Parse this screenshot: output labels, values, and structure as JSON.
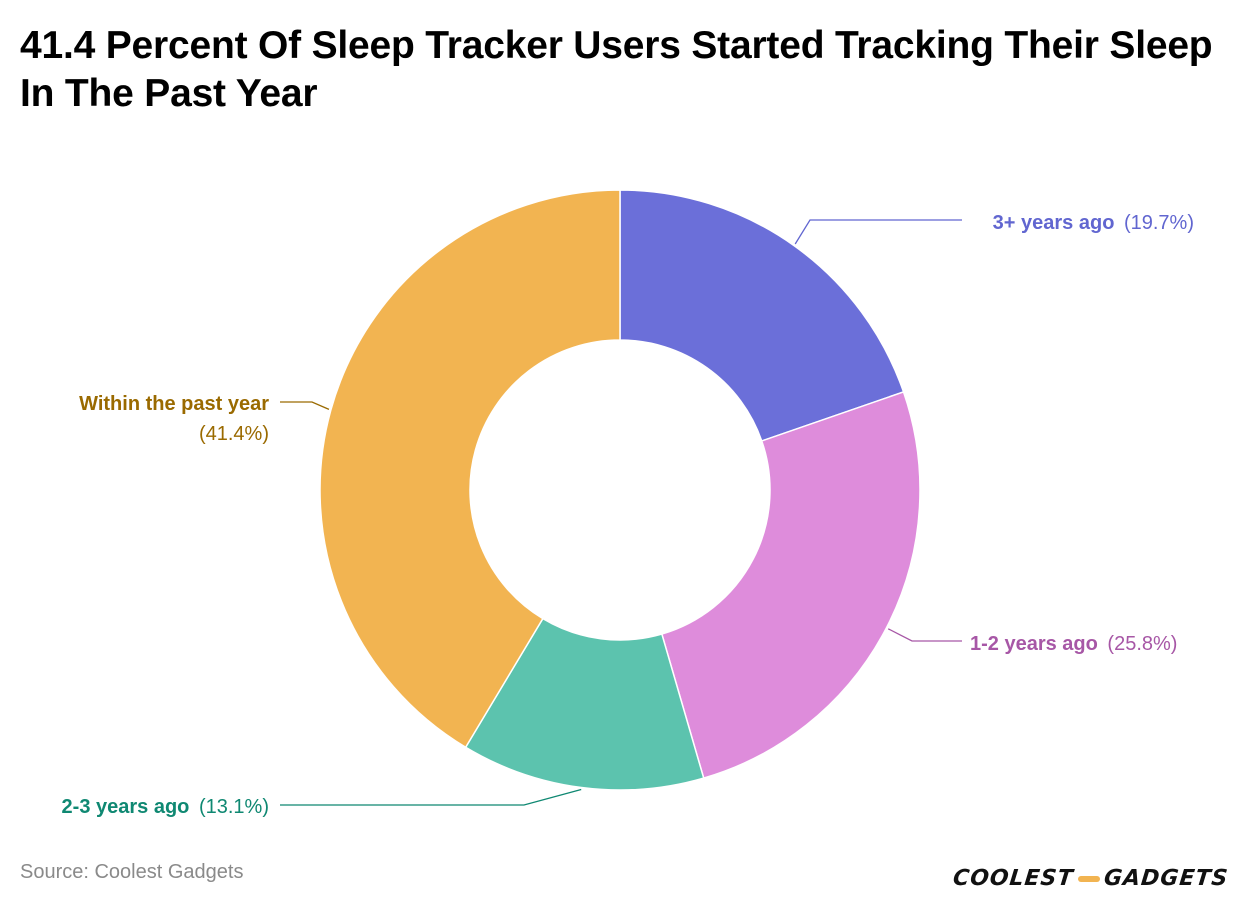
{
  "header": {
    "title": "41.4 Percent Of Sleep Tracker Users Started Tracking Their Sleep In The Past Year"
  },
  "footer": {
    "source": "Source: Coolest Gadgets",
    "logo_word_1": "Coolest",
    "logo_word_2": "Gadgets"
  },
  "colors": {
    "three_plus": "#6b6fd9",
    "one_two": "#de8cdb",
    "two_three": "#5cc3ae",
    "within": "#f2b451",
    "label_three_plus": "#6166d0",
    "label_one_two": "#a757a6",
    "label_two_three": "#0f8872",
    "label_within": "#9a6a00"
  },
  "chart_data": {
    "type": "pie",
    "variant": "donut",
    "title": "41.4 Percent Of Sleep Tracker Users Started Tracking Their Sleep In The Past Year",
    "unit": "%",
    "slices": [
      {
        "label": "3+ years ago",
        "value": 19.7,
        "display": "(19.7%)",
        "color": "#6b6fd9",
        "label_color": "#6166d0"
      },
      {
        "label": "1-2 years ago",
        "value": 25.8,
        "display": "(25.8%)",
        "color": "#de8cdb",
        "label_color": "#a757a6"
      },
      {
        "label": "2-3 years ago",
        "value": 13.1,
        "display": "(13.1%)",
        "color": "#5cc3ae",
        "label_color": "#0f8872"
      },
      {
        "label": "Within the past year",
        "value": 41.4,
        "display": "(41.4%)",
        "color": "#f2b451",
        "label_color": "#9a6a00"
      }
    ]
  }
}
